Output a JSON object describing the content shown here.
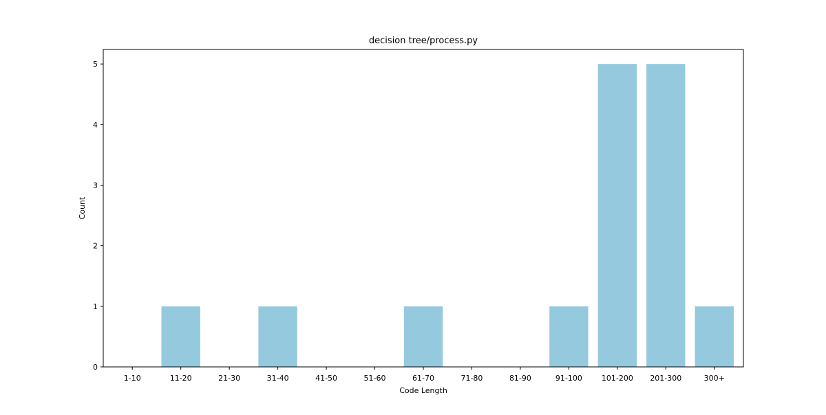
{
  "chart_data": {
    "type": "bar",
    "title": "decision tree/process.py",
    "xlabel": "Code Length",
    "ylabel": "Count",
    "categories": [
      "1-10",
      "11-20",
      "21-30",
      "31-40",
      "41-50",
      "51-60",
      "61-70",
      "71-80",
      "81-90",
      "91-100",
      "101-200",
      "201-300",
      "300+"
    ],
    "values": [
      0,
      1,
      0,
      1,
      0,
      0,
      1,
      0,
      0,
      1,
      5,
      5,
      1
    ],
    "ylim": [
      0,
      5.24
    ],
    "yticks": [
      0,
      1,
      2,
      3,
      4,
      5
    ],
    "bar_color": "#95c9de",
    "grid": false,
    "legend": "none"
  }
}
